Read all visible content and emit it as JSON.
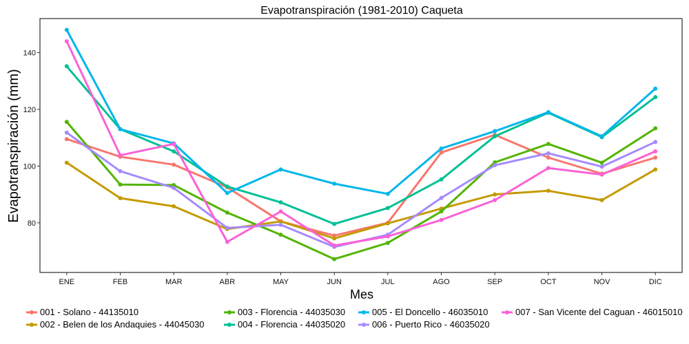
{
  "chart_data": {
    "type": "line",
    "title": "Evapotranspiración (1981-2010)  Caqueta",
    "xlabel": "Mes",
    "ylabel": "Evapotranspiración  (mm)",
    "categories": [
      "ENE",
      "FEB",
      "MAR",
      "ABR",
      "MAY",
      "JUN",
      "JUL",
      "AGO",
      "SEP",
      "OCT",
      "NOV",
      "DIC"
    ],
    "ylim": [
      62.5,
      152
    ],
    "yticks": [
      80,
      100,
      120,
      140
    ],
    "grid": false,
    "legend_position": "bottom",
    "series": [
      {
        "name": "001 - Solano - 44135010",
        "color": "#F8766D",
        "values": [
          109.5,
          103.3,
          100.5,
          92.5,
          80.5,
          75.5,
          80.0,
          104.8,
          111.0,
          103.0,
          97.3,
          103.0
        ]
      },
      {
        "name": "002 - Belen de los Andaquies - 44045030",
        "color": "#C49A00",
        "values": [
          101.2,
          88.7,
          85.8,
          77.8,
          80.5,
          74.5,
          79.8,
          85.0,
          90.0,
          91.3,
          88.0,
          98.8
        ]
      },
      {
        "name": "003 - Florencia - 44035030",
        "color": "#53B400",
        "values": [
          115.6,
          93.5,
          93.3,
          83.6,
          75.8,
          67.2,
          72.9,
          84.0,
          101.3,
          107.8,
          101.2,
          113.3
        ]
      },
      {
        "name": "004 - Florencia - 44035020",
        "color": "#00C094",
        "values": [
          135.2,
          113.0,
          105.2,
          92.8,
          87.2,
          79.6,
          85.2,
          95.3,
          110.5,
          118.8,
          110.2,
          124.3
        ]
      },
      {
        "name": "005 - El Doncello - 46035010",
        "color": "#00B6EB",
        "values": [
          148.0,
          113.0,
          108.0,
          90.5,
          98.8,
          93.8,
          90.2,
          106.2,
          112.3,
          119.0,
          110.5,
          127.3
        ]
      },
      {
        "name": "006 - Puerto Rico - 46035020",
        "color": "#A58AFF",
        "values": [
          111.8,
          98.2,
          92.3,
          78.2,
          79.3,
          71.5,
          75.8,
          88.8,
          100.3,
          104.5,
          99.8,
          108.5
        ]
      },
      {
        "name": "007 - San Vicente del Caguan - 46015010",
        "color": "#FB61D7",
        "values": [
          144.0,
          103.8,
          107.8,
          73.3,
          84.0,
          72.0,
          75.2,
          81.0,
          88.0,
          99.3,
          97.0,
          105.2
        ]
      }
    ]
  }
}
